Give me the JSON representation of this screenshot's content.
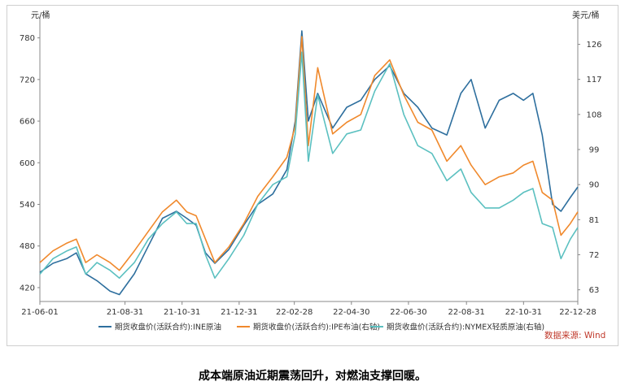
{
  "caption": "成本端原油近期震荡回升，对燃油支撑回暖。",
  "chart_data": {
    "type": "line",
    "left_unit": "元/桶",
    "right_unit": "美元/桶",
    "source": "数据来源: Wind",
    "x_range": [
      "2021-06-01",
      "2022-12-28"
    ],
    "x_ticks": [
      {
        "date": "2021-06-01",
        "label": "21-06-01"
      },
      {
        "date": "2021-08-31",
        "label": "21-08-31"
      },
      {
        "date": "2021-10-31",
        "label": "21-10-31"
      },
      {
        "date": "2021-12-31",
        "label": "21-12-31"
      },
      {
        "date": "2022-02-28",
        "label": "22-02-28"
      },
      {
        "date": "2022-04-30",
        "label": "22-04-30"
      },
      {
        "date": "2022-06-30",
        "label": "22-06-30"
      },
      {
        "date": "2022-08-31",
        "label": "22-08-31"
      },
      {
        "date": "2022-10-31",
        "label": "22-10-31"
      },
      {
        "date": "2022-12-28",
        "label": "22-12-28"
      }
    ],
    "y_left": {
      "min": 400,
      "max": 810,
      "ticks": [
        420,
        480,
        540,
        600,
        660,
        720,
        780
      ]
    },
    "y_right": {
      "min": 60.0,
      "max": 133.0,
      "ticks": [
        63,
        72,
        81,
        90,
        99,
        108,
        117,
        126
      ]
    },
    "series": [
      {
        "name": "期货收盘价(活跃合约):INE原油",
        "axis": "left",
        "color": "#2e6f9e",
        "points": [
          [
            "2021-06-01",
            442
          ],
          [
            "2021-06-15",
            455
          ],
          [
            "2021-06-30",
            462
          ],
          [
            "2021-07-10",
            470
          ],
          [
            "2021-07-20",
            440
          ],
          [
            "2021-08-01",
            430
          ],
          [
            "2021-08-15",
            415
          ],
          [
            "2021-08-25",
            410
          ],
          [
            "2021-09-10",
            440
          ],
          [
            "2021-09-25",
            480
          ],
          [
            "2021-10-10",
            520
          ],
          [
            "2021-10-25",
            530
          ],
          [
            "2021-11-05",
            520
          ],
          [
            "2021-11-15",
            510
          ],
          [
            "2021-11-25",
            470
          ],
          [
            "2021-12-05",
            455
          ],
          [
            "2021-12-20",
            475
          ],
          [
            "2022-01-05",
            510
          ],
          [
            "2022-01-20",
            540
          ],
          [
            "2022-02-05",
            555
          ],
          [
            "2022-02-20",
            590
          ],
          [
            "2022-03-01",
            660
          ],
          [
            "2022-03-08",
            790
          ],
          [
            "2022-03-15",
            660
          ],
          [
            "2022-03-25",
            700
          ],
          [
            "2022-04-10",
            650
          ],
          [
            "2022-04-25",
            680
          ],
          [
            "2022-05-10",
            690
          ],
          [
            "2022-05-25",
            720
          ],
          [
            "2022-06-10",
            740
          ],
          [
            "2022-06-25",
            700
          ],
          [
            "2022-07-10",
            680
          ],
          [
            "2022-07-25",
            650
          ],
          [
            "2022-08-10",
            640
          ],
          [
            "2022-08-25",
            700
          ],
          [
            "2022-09-05",
            720
          ],
          [
            "2022-09-20",
            650
          ],
          [
            "2022-10-05",
            690
          ],
          [
            "2022-10-20",
            700
          ],
          [
            "2022-10-31",
            690
          ],
          [
            "2022-11-10",
            700
          ],
          [
            "2022-11-20",
            640
          ],
          [
            "2022-12-01",
            540
          ],
          [
            "2022-12-10",
            530
          ],
          [
            "2022-12-20",
            550
          ],
          [
            "2022-12-28",
            565
          ]
        ]
      },
      {
        "name": "期货收盘价(活跃合约):IPE布油(右轴)",
        "axis": "right",
        "color": "#f0892c",
        "points": [
          [
            "2021-06-01",
            70
          ],
          [
            "2021-06-15",
            73
          ],
          [
            "2021-06-30",
            75
          ],
          [
            "2021-07-10",
            76
          ],
          [
            "2021-07-20",
            70
          ],
          [
            "2021-08-01",
            72
          ],
          [
            "2021-08-15",
            70
          ],
          [
            "2021-08-25",
            68
          ],
          [
            "2021-09-10",
            73
          ],
          [
            "2021-09-25",
            78
          ],
          [
            "2021-10-10",
            83
          ],
          [
            "2021-10-25",
            86
          ],
          [
            "2021-11-05",
            83
          ],
          [
            "2021-11-15",
            82
          ],
          [
            "2021-11-25",
            76
          ],
          [
            "2021-12-05",
            70
          ],
          [
            "2021-12-20",
            74
          ],
          [
            "2022-01-05",
            80
          ],
          [
            "2022-01-20",
            87
          ],
          [
            "2022-02-05",
            92
          ],
          [
            "2022-02-20",
            97
          ],
          [
            "2022-03-01",
            105
          ],
          [
            "2022-03-08",
            128
          ],
          [
            "2022-03-15",
            100
          ],
          [
            "2022-03-25",
            120
          ],
          [
            "2022-04-10",
            103
          ],
          [
            "2022-04-25",
            106
          ],
          [
            "2022-05-10",
            108
          ],
          [
            "2022-05-25",
            118
          ],
          [
            "2022-06-10",
            122
          ],
          [
            "2022-06-25",
            113
          ],
          [
            "2022-07-10",
            106
          ],
          [
            "2022-07-25",
            104
          ],
          [
            "2022-08-10",
            96
          ],
          [
            "2022-08-25",
            100
          ],
          [
            "2022-09-05",
            95
          ],
          [
            "2022-09-20",
            90
          ],
          [
            "2022-10-05",
            92
          ],
          [
            "2022-10-20",
            93
          ],
          [
            "2022-10-31",
            95
          ],
          [
            "2022-11-10",
            96
          ],
          [
            "2022-11-20",
            88
          ],
          [
            "2022-12-01",
            86
          ],
          [
            "2022-12-10",
            77
          ],
          [
            "2022-12-20",
            80
          ],
          [
            "2022-12-28",
            83
          ]
        ]
      },
      {
        "name": "期货收盘价(活跃合约):NYMEX轻质原油(右轴)",
        "axis": "right",
        "color": "#5bc0c0",
        "points": [
          [
            "2021-06-01",
            67
          ],
          [
            "2021-06-15",
            71
          ],
          [
            "2021-06-30",
            73
          ],
          [
            "2021-07-10",
            74
          ],
          [
            "2021-07-20",
            67
          ],
          [
            "2021-08-01",
            70
          ],
          [
            "2021-08-15",
            68
          ],
          [
            "2021-08-25",
            66
          ],
          [
            "2021-09-10",
            70
          ],
          [
            "2021-09-25",
            76
          ],
          [
            "2021-10-10",
            80
          ],
          [
            "2021-10-25",
            83
          ],
          [
            "2021-11-05",
            80
          ],
          [
            "2021-11-15",
            80
          ],
          [
            "2021-11-25",
            72
          ],
          [
            "2021-12-05",
            66
          ],
          [
            "2021-12-20",
            71
          ],
          [
            "2022-01-05",
            77
          ],
          [
            "2022-01-20",
            85
          ],
          [
            "2022-02-05",
            90
          ],
          [
            "2022-02-20",
            92
          ],
          [
            "2022-03-01",
            103
          ],
          [
            "2022-03-08",
            124
          ],
          [
            "2022-03-15",
            96
          ],
          [
            "2022-03-25",
            113
          ],
          [
            "2022-04-10",
            98
          ],
          [
            "2022-04-25",
            103
          ],
          [
            "2022-05-10",
            104
          ],
          [
            "2022-05-25",
            114
          ],
          [
            "2022-06-10",
            121
          ],
          [
            "2022-06-25",
            108
          ],
          [
            "2022-07-10",
            100
          ],
          [
            "2022-07-25",
            98
          ],
          [
            "2022-08-10",
            91
          ],
          [
            "2022-08-25",
            94
          ],
          [
            "2022-09-05",
            88
          ],
          [
            "2022-09-20",
            84
          ],
          [
            "2022-10-05",
            84
          ],
          [
            "2022-10-20",
            86
          ],
          [
            "2022-10-31",
            88
          ],
          [
            "2022-11-10",
            89
          ],
          [
            "2022-11-20",
            80
          ],
          [
            "2022-12-01",
            79
          ],
          [
            "2022-12-10",
            71
          ],
          [
            "2022-12-20",
            76
          ],
          [
            "2022-12-28",
            79
          ]
        ]
      }
    ]
  }
}
